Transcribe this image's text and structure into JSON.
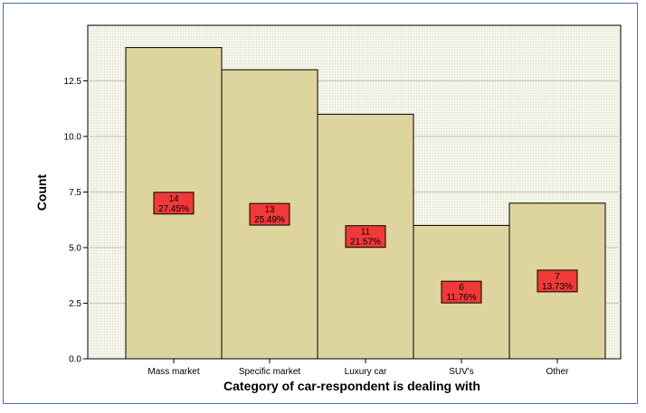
{
  "chart_data": {
    "type": "bar",
    "categories": [
      "Mass market",
      "Specific market",
      "Luxury car",
      "SUV's",
      "Other"
    ],
    "values": [
      14,
      13,
      11,
      6,
      7
    ],
    "data_labels": [
      {
        "count": "14",
        "percent": "27.45%"
      },
      {
        "count": "13",
        "percent": "25.49%"
      },
      {
        "count": "11",
        "percent": "21.57%"
      },
      {
        "count": "6",
        "percent": "11.76%"
      },
      {
        "count": "7",
        "percent": "13.73%"
      }
    ],
    "xlabel": "Category of car-respondent is dealing with",
    "ylabel": "Count",
    "ylim": [
      0,
      15
    ],
    "yticks": [
      "0.0",
      "2.5",
      "5.0",
      "7.5",
      "10.0",
      "12.5"
    ],
    "grid": true,
    "legend": "none"
  },
  "colors": {
    "plot_background": "#ebebd9",
    "bar_fill": "#ddd59d",
    "bar_stroke": "#000000",
    "label_fill": "#f03a3a",
    "frame_border": "#4f6fa0"
  }
}
